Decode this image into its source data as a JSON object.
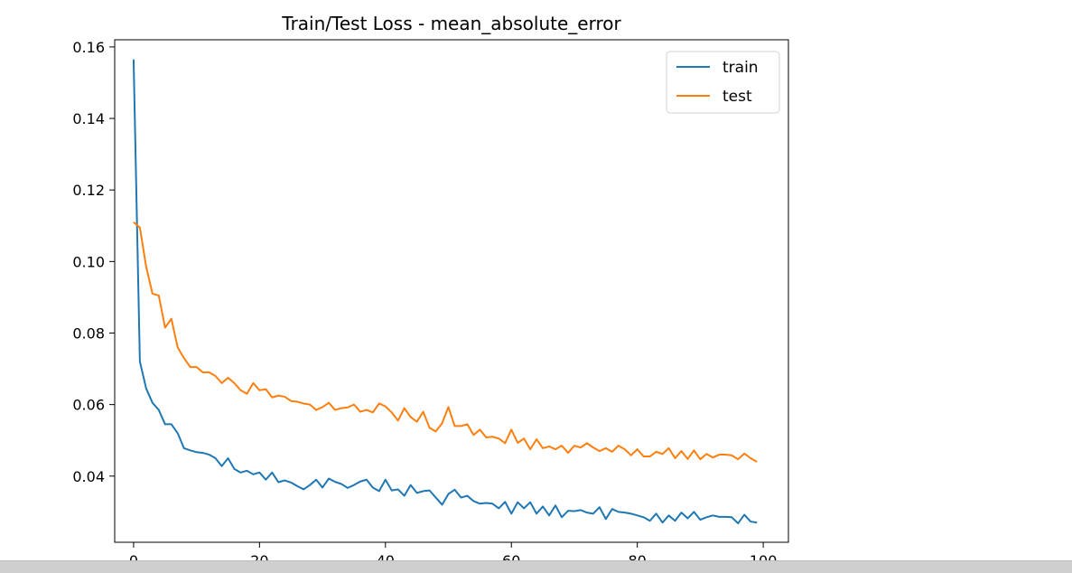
{
  "chart_data": {
    "type": "line",
    "title": "Train/Test Loss - mean_absolute_error",
    "xlabel": "",
    "ylabel": "",
    "xlim": [
      -3,
      104
    ],
    "ylim": [
      0.0215,
      0.162
    ],
    "xticks": [
      0,
      20,
      40,
      60,
      80,
      100
    ],
    "yticks": [
      0.04,
      0.06,
      0.08,
      0.1,
      0.12,
      0.14,
      0.16
    ],
    "ytick_labels": [
      "0.04",
      "0.06",
      "0.08",
      "0.10",
      "0.12",
      "0.14",
      "0.16"
    ],
    "xtick_labels": [
      "0",
      "20",
      "40",
      "60",
      "80",
      "100"
    ],
    "grid": false,
    "legend_position": "top-right",
    "series": [
      {
        "name": "train",
        "color": "#1f77b4",
        "values": [
          0.1565,
          0.072,
          0.0645,
          0.0605,
          0.0585,
          0.0545,
          0.0545,
          0.052,
          0.0478,
          0.0472,
          0.0467,
          0.0465,
          0.046,
          0.045,
          0.0428,
          0.045,
          0.042,
          0.041,
          0.0415,
          0.0405,
          0.041,
          0.039,
          0.041,
          0.0383,
          0.0388,
          0.0382,
          0.0372,
          0.0363,
          0.0375,
          0.039,
          0.0368,
          0.0393,
          0.0384,
          0.0378,
          0.0367,
          0.0375,
          0.0385,
          0.039,
          0.0368,
          0.0358,
          0.039,
          0.036,
          0.0363,
          0.0345,
          0.0375,
          0.0353,
          0.0358,
          0.036,
          0.034,
          0.032,
          0.035,
          0.0362,
          0.034,
          0.0345,
          0.033,
          0.0323,
          0.0325,
          0.0323,
          0.031,
          0.0328,
          0.0295,
          0.0327,
          0.031,
          0.0327,
          0.0295,
          0.0315,
          0.029,
          0.0318,
          0.0285,
          0.0303,
          0.0302,
          0.0305,
          0.0298,
          0.0295,
          0.0313,
          0.028,
          0.0308,
          0.03,
          0.0298,
          0.0295,
          0.029,
          0.0285,
          0.0275,
          0.0295,
          0.027,
          0.029,
          0.0275,
          0.0298,
          0.0282,
          0.03,
          0.0278,
          0.0285,
          0.029,
          0.0286,
          0.0286,
          0.0285,
          0.0268,
          0.0292,
          0.0273,
          0.027
        ]
      },
      {
        "name": "test",
        "color": "#ff7f0e",
        "values": [
          0.111,
          0.1095,
          0.0985,
          0.091,
          0.0905,
          0.0815,
          0.084,
          0.076,
          0.073,
          0.0705,
          0.0705,
          0.069,
          0.069,
          0.068,
          0.066,
          0.0675,
          0.066,
          0.064,
          0.063,
          0.066,
          0.064,
          0.0643,
          0.062,
          0.0625,
          0.0622,
          0.061,
          0.0608,
          0.0603,
          0.06,
          0.0585,
          0.0593,
          0.0605,
          0.0585,
          0.059,
          0.0592,
          0.06,
          0.058,
          0.0585,
          0.0578,
          0.0603,
          0.0595,
          0.0578,
          0.0555,
          0.059,
          0.0565,
          0.0552,
          0.058,
          0.0535,
          0.0525,
          0.0548,
          0.0593,
          0.054,
          0.054,
          0.0545,
          0.0515,
          0.053,
          0.0508,
          0.051,
          0.0505,
          0.0492,
          0.053,
          0.0493,
          0.0505,
          0.0475,
          0.0503,
          0.0478,
          0.0483,
          0.0475,
          0.0485,
          0.0465,
          0.0485,
          0.048,
          0.0492,
          0.048,
          0.047,
          0.0478,
          0.0468,
          0.0485,
          0.0475,
          0.0458,
          0.0475,
          0.0455,
          0.0455,
          0.0468,
          0.0462,
          0.0478,
          0.045,
          0.047,
          0.0448,
          0.0472,
          0.0447,
          0.0462,
          0.0452,
          0.046,
          0.046,
          0.0458,
          0.0447,
          0.0463,
          0.045,
          0.044
        ]
      }
    ]
  }
}
